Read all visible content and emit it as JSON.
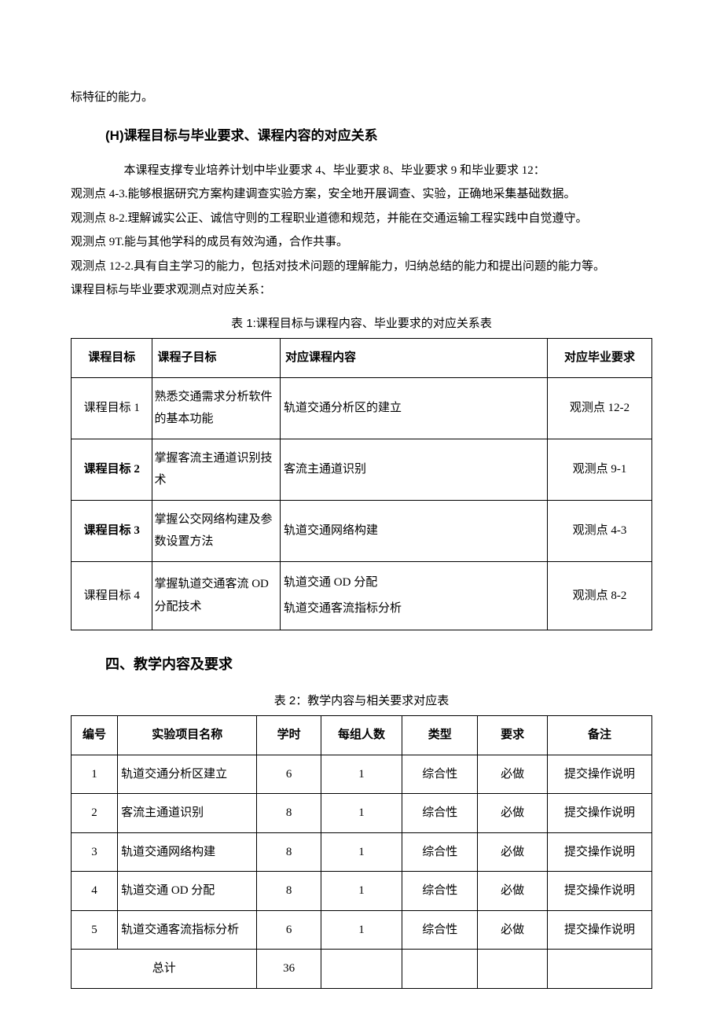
{
  "fragment_top": "标特征的能力。",
  "section_h": "(H)课程目标与毕业要求、课程内容的对应关系",
  "intro_indent": "本课程支撑专业培养计划中毕业要求 4、毕业要求 8、毕业要求 9 和毕业要求 12：",
  "obs_lines": [
    "观测点 4-3.能够根据研究方案构建调查实验方案，安全地开展调查、实验，正确地采集基础数据。",
    "观测点 8-2.理解诚实公正、诚信守则的工程职业道德和规范，并能在交通运输工程实践中自觉遵守。",
    "观测点 9T.能与其他学科的成员有效沟通，合作共事。",
    "观测点 12-2.具有自主学习的能力，包括对技术问题的理解能力，归纳总结的能力和提出问题的能力等。",
    "课程目标与毕业要求观测点对应关系："
  ],
  "table1": {
    "caption": "表 1:课程目标与课程内容、毕业要求的对应关系表",
    "headers": [
      "课程目标",
      "课程子目标",
      "对应课程内容",
      "对应毕业要求"
    ],
    "rows": [
      {
        "goal": "课程目标 1",
        "bold": false,
        "sub": "熟悉交通需求分析软件的基本功能",
        "content": "轨道交通分析区的建立",
        "req": "观测点 12-2"
      },
      {
        "goal": "课程目标 2",
        "bold": true,
        "sub": "掌握客流主通道识别技术",
        "content": "客流主通道识别",
        "req": "观测点 9-1"
      },
      {
        "goal": "课程目标 3",
        "bold": true,
        "sub": "掌握公交网络构建及参数设置方法",
        "content": "轨道交通网络构建",
        "req": "观测点 4-3"
      },
      {
        "goal": "课程目标 4",
        "bold": false,
        "sub": "掌握轨道交通客流 OD 分配技术",
        "content": "轨道交通 OD 分配\n轨道交通客流指标分析",
        "req": "观测点 8-2"
      }
    ]
  },
  "section4": "四、教学内容及要求",
  "table2": {
    "caption": "表 2：教学内容与相关要求对应表",
    "headers": [
      "编号",
      "实验项目名称",
      "学时",
      "每组人数",
      "类型",
      "要求",
      "备注"
    ],
    "rows": [
      {
        "no": "1",
        "name": "轨道交通分析区建立",
        "hours": "6",
        "ppl": "1",
        "type": "综合性",
        "req": "必做",
        "note": "提交操作说明"
      },
      {
        "no": "2",
        "name": "客流主通道识别",
        "hours": "8",
        "ppl": "1",
        "type": "综合性",
        "req": "必做",
        "note": "提交操作说明"
      },
      {
        "no": "3",
        "name": "轨道交通网络构建",
        "hours": "8",
        "ppl": "1",
        "type": "综合性",
        "req": "必做",
        "note": "提交操作说明"
      },
      {
        "no": "4",
        "name": "轨道交通 OD 分配",
        "hours": "8",
        "ppl": "1",
        "type": "综合性",
        "req": "必做",
        "note": "提交操作说明"
      },
      {
        "no": "5",
        "name": "轨道交通客流指标分析",
        "hours": "6",
        "ppl": "1",
        "type": "综合性",
        "req": "必做",
        "note": "提交操作说明"
      }
    ],
    "sum_label": "总计",
    "sum_hours": "36"
  }
}
